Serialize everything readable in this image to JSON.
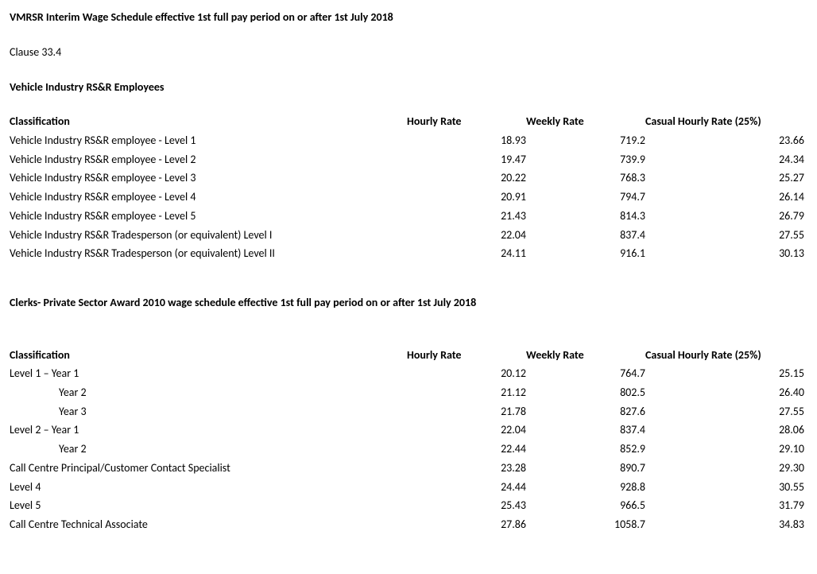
{
  "title1": "VMRSR Interim Wage Schedule effective 1st full pay period on or after 1st July 2018",
  "clause": "Clause 33.4",
  "section1_title": "Vehicle Industry RS&R Employees",
  "headers": {
    "classification": "Classification",
    "hourly": "Hourly Rate",
    "weekly": "Weekly Rate",
    "casual": "Casual Hourly Rate (25%)"
  },
  "table1": {
    "rows": [
      {
        "label": "Vehicle Industry RS&R employee - Level 1",
        "hourly": "18.93",
        "weekly": "719.2",
        "casual": "23.66"
      },
      {
        "label": "Vehicle Industry RS&R employee - Level 2",
        "hourly": "19.47",
        "weekly": "739.9",
        "casual": "24.34"
      },
      {
        "label": "Vehicle Industry RS&R employee - Level 3",
        "hourly": "20.22",
        "weekly": "768.3",
        "casual": "25.27"
      },
      {
        "label": "Vehicle Industry RS&R employee - Level 4",
        "hourly": "20.91",
        "weekly": "794.7",
        "casual": "26.14"
      },
      {
        "label": "Vehicle Industry RS&R employee - Level 5",
        "hourly": "21.43",
        "weekly": "814.3",
        "casual": "26.79"
      },
      {
        "label": "Vehicle Industry RS&R Tradesperson (or equivalent) Level I",
        "hourly": "22.04",
        "weekly": "837.4",
        "casual": "27.55"
      },
      {
        "label": "Vehicle Industry RS&R Tradesperson (or equivalent) Level II",
        "hourly": "24.11",
        "weekly": "916.1",
        "casual": "30.13"
      }
    ]
  },
  "title2": "Clerks- Private Sector Award 2010 wage schedule effective 1st full pay period on or after 1st July 2018",
  "table2": {
    "rows": [
      {
        "label": "Level 1 – Year 1",
        "indent": false,
        "hourly": "20.12",
        "weekly": "764.7",
        "casual": "25.15"
      },
      {
        "label": "Year 2",
        "indent": true,
        "hourly": "21.12",
        "weekly": "802.5",
        "casual": "26.40"
      },
      {
        "label": "Year 3",
        "indent": true,
        "hourly": "21.78",
        "weekly": "827.6",
        "casual": "27.55"
      },
      {
        "label": "Level 2 – Year 1",
        "indent": false,
        "hourly": "22.04",
        "weekly": "837.4",
        "casual": "28.06"
      },
      {
        "label": "Year 2",
        "indent": true,
        "hourly": "22.44",
        "weekly": "852.9",
        "casual": "29.10"
      },
      {
        "label": "Call Centre Principal/Customer Contact Specialist",
        "indent": false,
        "hourly": "23.28",
        "weekly": "890.7",
        "casual": "29.30"
      },
      {
        "label": "Level 4",
        "indent": false,
        "hourly": "24.44",
        "weekly": "928.8",
        "casual": "30.55"
      },
      {
        "label": "Level 5",
        "indent": false,
        "hourly": "25.43",
        "weekly": "966.5",
        "casual": "31.79"
      },
      {
        "label": "Call Centre Technical Associate",
        "indent": false,
        "hourly": "27.86",
        "weekly": "1058.7",
        "casual": "34.83"
      }
    ]
  }
}
